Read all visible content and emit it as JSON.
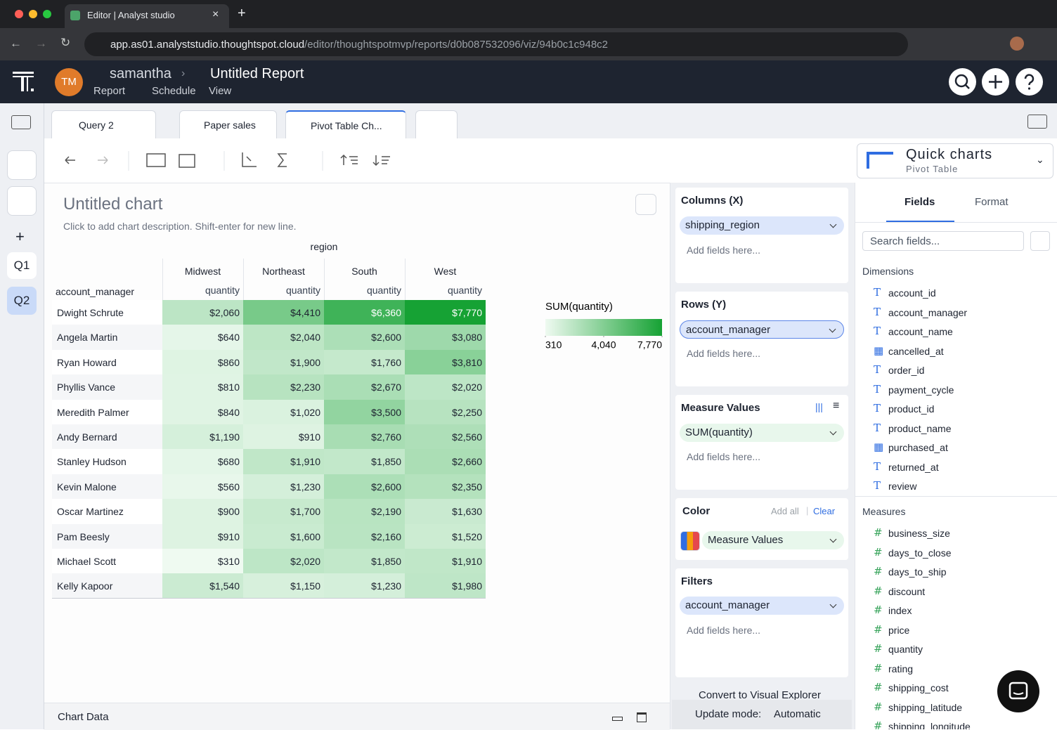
{
  "browser": {
    "tab_title": "Editor | Analyst studio",
    "url_host": "app.as01.analyststudio.thoughtspot.cloud",
    "url_path": "/editor/thoughtspotmvp/reports/d0b087532096/viz/94b0c1c948c2"
  },
  "header": {
    "avatar": "TM",
    "user": "samantha",
    "report": "Untitled Report",
    "menu": [
      "Report",
      "Schedule",
      "View"
    ]
  },
  "tabs": [
    "Query 2",
    "Paper sales",
    "Pivot Table Ch..."
  ],
  "sidebar": [
    "Q1",
    "Q2"
  ],
  "quick_charts": {
    "title": "Quick charts",
    "subtitle": "Pivot Table"
  },
  "chart": {
    "title": "Untitled chart",
    "description": "Click to add chart description. Shift-enter for new line.",
    "column_header": "region",
    "row_header": "account_manager",
    "measure": "quantity",
    "columns": [
      "Midwest",
      "Northeast",
      "South",
      "West"
    ],
    "rows": [
      {
        "name": "Dwight Schrute",
        "values": [
          2060,
          4410,
          6360,
          7770
        ],
        "value_labels": [
          "$2,060",
          "$4,410",
          "$6,360",
          "$7,770"
        ]
      },
      {
        "name": "Angela Martin",
        "values": [
          640,
          2040,
          2600,
          3080
        ],
        "value_labels": [
          "$640",
          "$2,040",
          "$2,600",
          "$3,080"
        ]
      },
      {
        "name": "Ryan Howard",
        "values": [
          860,
          1900,
          1760,
          3810
        ],
        "value_labels": [
          "$860",
          "$1,900",
          "$1,760",
          "$3,810"
        ]
      },
      {
        "name": "Phyllis Vance",
        "values": [
          810,
          2230,
          2670,
          2020
        ],
        "value_labels": [
          "$810",
          "$2,230",
          "$2,670",
          "$2,020"
        ]
      },
      {
        "name": "Meredith Palmer",
        "values": [
          840,
          1020,
          3500,
          2250
        ],
        "value_labels": [
          "$840",
          "$1,020",
          "$3,500",
          "$2,250"
        ]
      },
      {
        "name": "Andy Bernard",
        "values": [
          1190,
          910,
          2760,
          2560
        ],
        "value_labels": [
          "$1,190",
          "$910",
          "$2,760",
          "$2,560"
        ]
      },
      {
        "name": "Stanley Hudson",
        "values": [
          680,
          1910,
          1850,
          2660
        ],
        "value_labels": [
          "$680",
          "$1,910",
          "$1,850",
          "$2,660"
        ]
      },
      {
        "name": "Kevin Malone",
        "values": [
          560,
          1230,
          2600,
          2350
        ],
        "value_labels": [
          "$560",
          "$1,230",
          "$2,600",
          "$2,350"
        ]
      },
      {
        "name": "Oscar Martinez",
        "values": [
          900,
          1700,
          2190,
          1630
        ],
        "value_labels": [
          "$900",
          "$1,700",
          "$2,190",
          "$1,630"
        ]
      },
      {
        "name": "Pam Beesly",
        "values": [
          910,
          1600,
          2160,
          1520
        ],
        "value_labels": [
          "$910",
          "$1,600",
          "$2,160",
          "$1,520"
        ]
      },
      {
        "name": "Michael Scott",
        "values": [
          310,
          2020,
          1850,
          1910
        ],
        "value_labels": [
          "$310",
          "$2,020",
          "$1,850",
          "$1,910"
        ]
      },
      {
        "name": "Kelly Kapoor",
        "values": [
          1540,
          1150,
          1230,
          1980
        ],
        "value_labels": [
          "$1,540",
          "$1,150",
          "$1,230",
          "$1,980"
        ]
      }
    ],
    "color_low": "#effaf1",
    "color_high": "#16a234",
    "legend": {
      "title": "SUM(quantity)",
      "range": [
        310,
        7770
      ],
      "ticks": [
        310,
        {
          "value": 4040,
          "label": "4,040"
        },
        {
          "value": 7770,
          "label": "7,770"
        }
      ]
    }
  },
  "config": {
    "columns": {
      "title": "Columns (X)",
      "field": "shipping_region",
      "placeholder": "Add fields here..."
    },
    "rows": {
      "title": "Rows (Y)",
      "field": "account_manager",
      "placeholder": "Add fields here..."
    },
    "measures": {
      "title": "Measure Values",
      "field": "SUM(quantity)",
      "placeholder": "Add fields here..."
    },
    "color": {
      "title": "Color",
      "add_all": "Add all",
      "clear": "Clear",
      "field": "Measure Values"
    },
    "filters": {
      "title": "Filters",
      "field": "account_manager",
      "placeholder": "Add fields here..."
    },
    "convert": "Convert to Visual Explorer",
    "update_label": "Update mode:",
    "update_value": "Automatic"
  },
  "fields": {
    "tabs": [
      "Fields",
      "Format"
    ],
    "search": "Search fields...",
    "dimensions_title": "Dimensions",
    "dimensions": [
      "account_id",
      "account_manager",
      "account_name",
      "cancelled_at",
      "order_id",
      "payment_cycle",
      "product_id",
      "product_name",
      "purchased_at",
      "returned_at",
      "review"
    ],
    "measures_title": "Measures",
    "measures": [
      "business_size",
      "days_to_close",
      "days_to_ship",
      "discount",
      "index",
      "price",
      "quantity",
      "rating",
      "shipping_cost",
      "shipping_latitude",
      "shipping_longitude"
    ]
  },
  "footer": "Chart Data"
}
